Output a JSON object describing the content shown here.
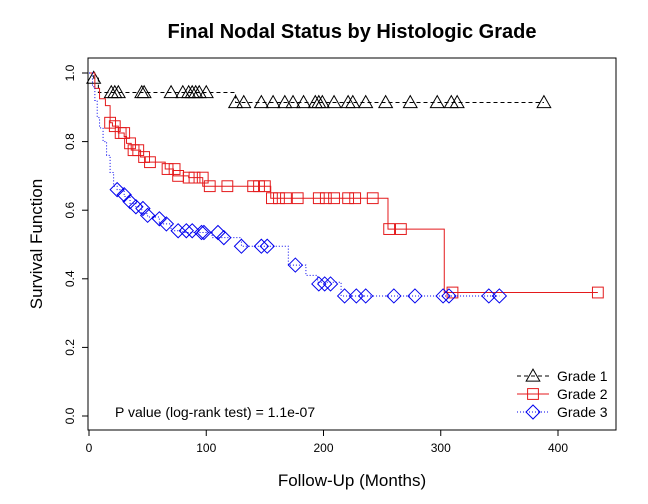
{
  "chart_data": {
    "type": "line",
    "title": "Final Nodal Status by Histologic Grade",
    "xlabel": "Follow-Up (Months)",
    "ylabel": "Survival Function",
    "xlim": [
      0,
      450
    ],
    "ylim": [
      -0.04,
      1.04
    ],
    "xticks": [
      0,
      100,
      200,
      300,
      400
    ],
    "yticks": [
      0.0,
      0.2,
      0.4,
      0.6,
      0.8,
      1.0
    ],
    "xtick_labels": [
      "0",
      "100",
      "200",
      "300",
      "400"
    ],
    "ytick_labels": [
      "0.0",
      "0.2",
      "0.4",
      "0.6",
      "0.8",
      "1.0"
    ],
    "legend_position": "bottom-right",
    "annotation": "P value (log-rank test) = 1.1e-07",
    "series": [
      {
        "name": "Grade 1",
        "color": "#000000",
        "line_style": "dashed",
        "marker": "triangle",
        "steps": [
          [
            0,
            1.0
          ],
          [
            4,
            0.985
          ],
          [
            8,
            0.943
          ],
          [
            125,
            0.914
          ]
        ],
        "censored": [
          [
            4,
            0.985
          ],
          [
            19,
            0.943
          ],
          [
            22,
            0.943
          ],
          [
            25,
            0.943
          ],
          [
            45,
            0.943
          ],
          [
            47,
            0.943
          ],
          [
            70,
            0.943
          ],
          [
            80,
            0.943
          ],
          [
            85,
            0.943
          ],
          [
            88,
            0.943
          ],
          [
            91,
            0.943
          ],
          [
            94,
            0.943
          ],
          [
            100,
            0.943
          ],
          [
            125,
            0.914
          ],
          [
            132,
            0.914
          ],
          [
            147,
            0.914
          ],
          [
            157,
            0.914
          ],
          [
            167,
            0.914
          ],
          [
            174,
            0.914
          ],
          [
            183,
            0.914
          ],
          [
            193,
            0.914
          ],
          [
            196,
            0.914
          ],
          [
            199,
            0.914
          ],
          [
            209,
            0.914
          ],
          [
            221,
            0.914
          ],
          [
            225,
            0.914
          ],
          [
            236,
            0.914
          ],
          [
            253,
            0.914
          ],
          [
            274,
            0.914
          ],
          [
            297,
            0.914
          ],
          [
            309,
            0.914
          ],
          [
            314,
            0.914
          ],
          [
            388,
            0.914
          ]
        ]
      },
      {
        "name": "Grade 2",
        "color": "#e41a1c",
        "line_style": "solid",
        "marker": "square",
        "steps": [
          [
            0,
            1.0
          ],
          [
            5,
            0.955
          ],
          [
            9,
            0.925
          ],
          [
            14,
            0.905
          ],
          [
            18,
            0.855
          ],
          [
            20,
            0.845
          ],
          [
            25,
            0.825
          ],
          [
            30,
            0.815
          ],
          [
            32,
            0.795
          ],
          [
            36,
            0.775
          ],
          [
            44,
            0.755
          ],
          [
            48,
            0.74
          ],
          [
            65,
            0.72
          ],
          [
            72,
            0.7
          ],
          [
            85,
            0.695
          ],
          [
            97,
            0.67
          ],
          [
            155,
            0.635
          ],
          [
            255,
            0.545
          ],
          [
            300,
            0.545
          ],
          [
            303,
            0.36
          ]
        ],
        "censored": [
          [
            18,
            0.855
          ],
          [
            22,
            0.845
          ],
          [
            27,
            0.825
          ],
          [
            30,
            0.825
          ],
          [
            35,
            0.795
          ],
          [
            38,
            0.775
          ],
          [
            42,
            0.775
          ],
          [
            47,
            0.755
          ],
          [
            52,
            0.74
          ],
          [
            67,
            0.72
          ],
          [
            73,
            0.72
          ],
          [
            76,
            0.7
          ],
          [
            85,
            0.695
          ],
          [
            90,
            0.695
          ],
          [
            97,
            0.695
          ],
          [
            103,
            0.67
          ],
          [
            118,
            0.67
          ],
          [
            140,
            0.67
          ],
          [
            145,
            0.67
          ],
          [
            150,
            0.67
          ],
          [
            156,
            0.635
          ],
          [
            162,
            0.635
          ],
          [
            168,
            0.635
          ],
          [
            178,
            0.635
          ],
          [
            196,
            0.635
          ],
          [
            202,
            0.635
          ],
          [
            209,
            0.635
          ],
          [
            221,
            0.635
          ],
          [
            227,
            0.635
          ],
          [
            242,
            0.635
          ],
          [
            256,
            0.545
          ],
          [
            266,
            0.545
          ],
          [
            310,
            0.36
          ],
          [
            434,
            0.36
          ]
        ]
      },
      {
        "name": "Grade 3",
        "color": "#0000ee",
        "line_style": "dotted",
        "marker": "diamond",
        "steps": [
          [
            0,
            1.0
          ],
          [
            3,
            0.96
          ],
          [
            5,
            0.92
          ],
          [
            7,
            0.87
          ],
          [
            9,
            0.84
          ],
          [
            12,
            0.8
          ],
          [
            15,
            0.76
          ],
          [
            18,
            0.71
          ],
          [
            21,
            0.67
          ],
          [
            24,
            0.66
          ],
          [
            30,
            0.64
          ],
          [
            35,
            0.62
          ],
          [
            40,
            0.61
          ],
          [
            45,
            0.59
          ],
          [
            50,
            0.58
          ],
          [
            60,
            0.56
          ],
          [
            70,
            0.54
          ],
          [
            80,
            0.535
          ],
          [
            105,
            0.52
          ],
          [
            130,
            0.495
          ],
          [
            170,
            0.44
          ],
          [
            185,
            0.41
          ],
          [
            195,
            0.39
          ],
          [
            215,
            0.35
          ]
        ],
        "censored": [
          [
            24,
            0.66
          ],
          [
            30,
            0.645
          ],
          [
            35,
            0.625
          ],
          [
            40,
            0.61
          ],
          [
            46,
            0.605
          ],
          [
            50,
            0.585
          ],
          [
            60,
            0.575
          ],
          [
            66,
            0.56
          ],
          [
            76,
            0.54
          ],
          [
            83,
            0.54
          ],
          [
            88,
            0.54
          ],
          [
            96,
            0.535
          ],
          [
            98,
            0.535
          ],
          [
            110,
            0.535
          ],
          [
            115,
            0.52
          ],
          [
            130,
            0.495
          ],
          [
            147,
            0.495
          ],
          [
            152,
            0.495
          ],
          [
            176,
            0.44
          ],
          [
            196,
            0.385
          ],
          [
            201,
            0.385
          ],
          [
            206,
            0.385
          ],
          [
            218,
            0.35
          ],
          [
            228,
            0.35
          ],
          [
            236,
            0.35
          ],
          [
            260,
            0.35
          ],
          [
            278,
            0.35
          ],
          [
            302,
            0.35
          ],
          [
            307,
            0.35
          ],
          [
            341,
            0.35
          ],
          [
            350,
            0.35
          ]
        ]
      }
    ]
  }
}
